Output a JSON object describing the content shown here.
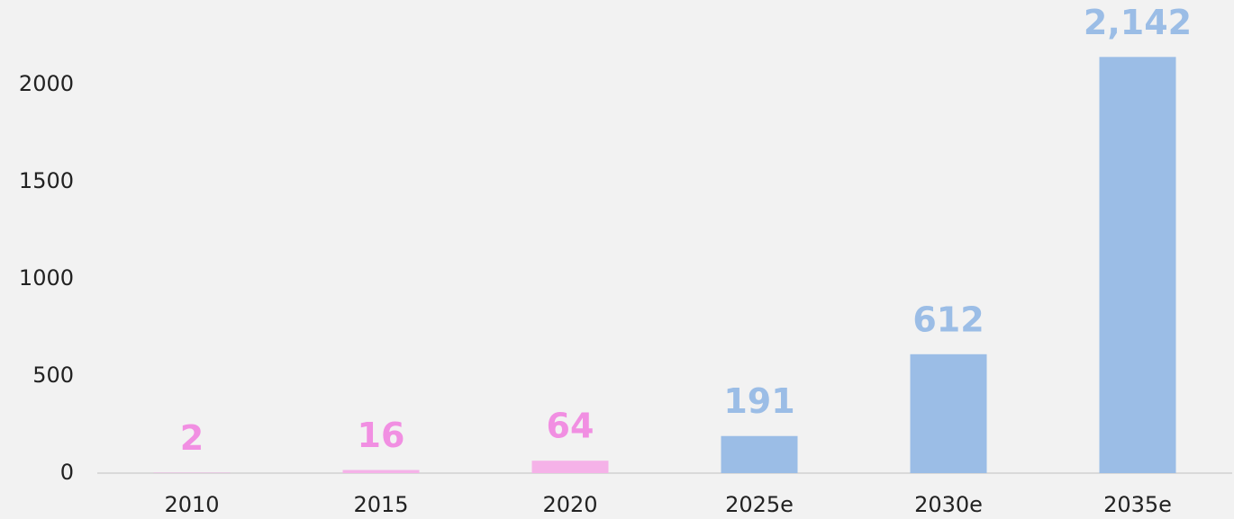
{
  "chart_data": {
    "type": "bar",
    "categories": [
      "2010",
      "2015",
      "2020",
      "2025e",
      "2030e",
      "2035e"
    ],
    "values": [
      2,
      16,
      64,
      191,
      612,
      2142
    ],
    "value_labels": [
      "2",
      "16",
      "64",
      "191",
      "612",
      "2,142"
    ],
    "colors": [
      "#f5b2e8",
      "#f5b2e8",
      "#f5b2e8",
      "#9bbde6",
      "#9bbde6",
      "#9bbde6"
    ],
    "label_colors": [
      "#f18fe2",
      "#f18fe2",
      "#f18fe2",
      "#9bbde6",
      "#9bbde6",
      "#9bbde6"
    ],
    "ylim": [
      0,
      2400
    ],
    "yticks": [
      0,
      500,
      1000,
      1500,
      2000
    ],
    "grid": false
  }
}
